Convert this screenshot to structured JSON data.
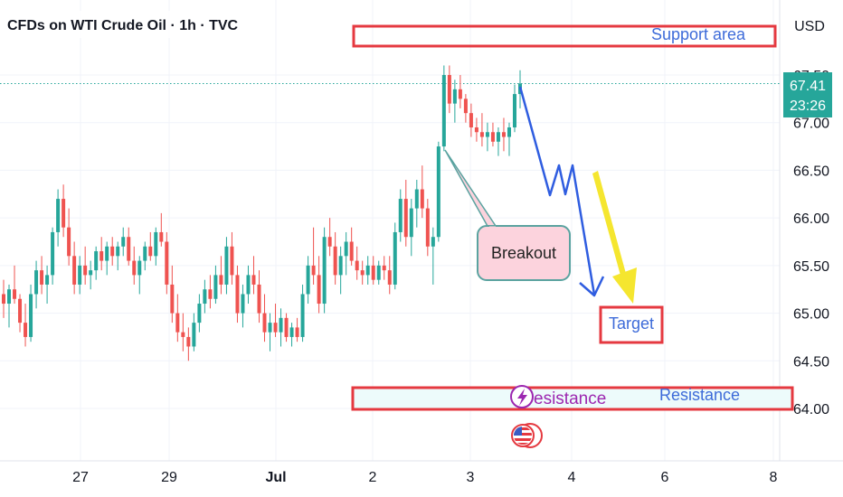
{
  "header": {
    "title": "CFDs on WTI Crude Oil · 1h · TVC",
    "currency": "USD"
  },
  "price_badge": {
    "price": "67.41",
    "countdown": "23:26"
  },
  "annotations": {
    "support_label": "Support area",
    "breakout_label": "Breakout",
    "target_label": "Target",
    "resistance_label": "Resistance",
    "resistance_label_partial": "esistance"
  },
  "colors": {
    "up": "#26a69a",
    "down": "#ef5350",
    "accent_red": "#e53940",
    "label_blue": "#2962ff",
    "arrow_yellow": "#f5e62f"
  },
  "icons": {
    "event": "lightning-icon",
    "flag": "us-flag-icon"
  },
  "chart_data": {
    "type": "candlestick",
    "symbol": "CFDs on WTI Crude Oil",
    "interval": "1h",
    "source": "TVC",
    "y_ticks": [
      "64.00",
      "64.50",
      "65.00",
      "65.50",
      "66.00",
      "66.50",
      "67.00",
      "67.50"
    ],
    "x_ticks": [
      "27",
      "29",
      "Jul",
      "2",
      "3",
      "4",
      "6",
      "8"
    ],
    "ylim": [
      63.5,
      68.0
    ],
    "last_price": 67.41,
    "grid": true,
    "candles": [
      {
        "o": 65.2,
        "h": 65.35,
        "l": 64.95,
        "c": 65.1
      },
      {
        "o": 65.1,
        "h": 65.3,
        "l": 64.85,
        "c": 65.25
      },
      {
        "o": 65.25,
        "h": 65.5,
        "l": 65.1,
        "c": 65.15
      },
      {
        "o": 65.15,
        "h": 65.2,
        "l": 64.8,
        "c": 64.9
      },
      {
        "o": 64.9,
        "h": 65.1,
        "l": 64.65,
        "c": 64.75
      },
      {
        "o": 64.75,
        "h": 65.3,
        "l": 64.7,
        "c": 65.2
      },
      {
        "o": 65.2,
        "h": 65.55,
        "l": 65.05,
        "c": 65.45
      },
      {
        "o": 65.45,
        "h": 65.6,
        "l": 65.2,
        "c": 65.3
      },
      {
        "o": 65.3,
        "h": 65.5,
        "l": 65.1,
        "c": 65.4
      },
      {
        "o": 65.4,
        "h": 65.9,
        "l": 65.3,
        "c": 65.85
      },
      {
        "o": 65.85,
        "h": 66.3,
        "l": 65.7,
        "c": 66.2
      },
      {
        "o": 66.2,
        "h": 66.35,
        "l": 65.8,
        "c": 65.9
      },
      {
        "o": 65.9,
        "h": 66.1,
        "l": 65.5,
        "c": 65.6
      },
      {
        "o": 65.6,
        "h": 65.75,
        "l": 65.2,
        "c": 65.3
      },
      {
        "o": 65.3,
        "h": 65.6,
        "l": 65.2,
        "c": 65.5
      },
      {
        "o": 65.5,
        "h": 65.7,
        "l": 65.3,
        "c": 65.4
      },
      {
        "o": 65.4,
        "h": 65.55,
        "l": 65.25,
        "c": 65.45
      },
      {
        "o": 65.45,
        "h": 65.7,
        "l": 65.35,
        "c": 65.65
      },
      {
        "o": 65.65,
        "h": 65.8,
        "l": 65.45,
        "c": 65.55
      },
      {
        "o": 65.55,
        "h": 65.75,
        "l": 65.4,
        "c": 65.7
      },
      {
        "o": 65.7,
        "h": 65.8,
        "l": 65.5,
        "c": 65.6
      },
      {
        "o": 65.6,
        "h": 65.75,
        "l": 65.45,
        "c": 65.7
      },
      {
        "o": 65.7,
        "h": 65.9,
        "l": 65.6,
        "c": 65.8
      },
      {
        "o": 65.8,
        "h": 65.9,
        "l": 65.5,
        "c": 65.55
      },
      {
        "o": 65.55,
        "h": 65.7,
        "l": 65.3,
        "c": 65.4
      },
      {
        "o": 65.4,
        "h": 65.6,
        "l": 65.2,
        "c": 65.55
      },
      {
        "o": 65.55,
        "h": 65.75,
        "l": 65.45,
        "c": 65.7
      },
      {
        "o": 65.7,
        "h": 65.85,
        "l": 65.55,
        "c": 65.6
      },
      {
        "o": 65.6,
        "h": 65.9,
        "l": 65.5,
        "c": 65.85
      },
      {
        "o": 65.85,
        "h": 66.05,
        "l": 65.7,
        "c": 65.75
      },
      {
        "o": 65.75,
        "h": 65.85,
        "l": 65.2,
        "c": 65.3
      },
      {
        "o": 65.3,
        "h": 65.5,
        "l": 64.9,
        "c": 65.0
      },
      {
        "o": 65.0,
        "h": 65.2,
        "l": 64.7,
        "c": 64.8
      },
      {
        "o": 64.8,
        "h": 65.0,
        "l": 64.6,
        "c": 64.75
      },
      {
        "o": 64.75,
        "h": 64.85,
        "l": 64.5,
        "c": 64.65
      },
      {
        "o": 64.65,
        "h": 65.0,
        "l": 64.6,
        "c": 64.9
      },
      {
        "o": 64.9,
        "h": 65.2,
        "l": 64.8,
        "c": 65.1
      },
      {
        "o": 65.1,
        "h": 65.35,
        "l": 65.0,
        "c": 65.25
      },
      {
        "o": 65.25,
        "h": 65.4,
        "l": 65.05,
        "c": 65.15
      },
      {
        "o": 65.15,
        "h": 65.5,
        "l": 65.1,
        "c": 65.4
      },
      {
        "o": 65.4,
        "h": 65.6,
        "l": 65.2,
        "c": 65.3
      },
      {
        "o": 65.3,
        "h": 65.8,
        "l": 65.2,
        "c": 65.7
      },
      {
        "o": 65.7,
        "h": 65.85,
        "l": 65.3,
        "c": 65.4
      },
      {
        "o": 65.4,
        "h": 65.5,
        "l": 64.9,
        "c": 65.0
      },
      {
        "o": 65.0,
        "h": 65.3,
        "l": 64.85,
        "c": 65.2
      },
      {
        "o": 65.2,
        "h": 65.5,
        "l": 65.1,
        "c": 65.4
      },
      {
        "o": 65.4,
        "h": 65.6,
        "l": 65.2,
        "c": 65.3
      },
      {
        "o": 65.3,
        "h": 65.45,
        "l": 64.9,
        "c": 65.0
      },
      {
        "o": 65.0,
        "h": 65.2,
        "l": 64.7,
        "c": 64.8
      },
      {
        "o": 64.8,
        "h": 65.0,
        "l": 64.6,
        "c": 64.9
      },
      {
        "o": 64.9,
        "h": 65.1,
        "l": 64.75,
        "c": 64.8
      },
      {
        "o": 64.8,
        "h": 65.05,
        "l": 64.65,
        "c": 64.95
      },
      {
        "o": 64.95,
        "h": 65.0,
        "l": 64.7,
        "c": 64.75
      },
      {
        "o": 64.75,
        "h": 64.9,
        "l": 64.65,
        "c": 64.85
      },
      {
        "o": 64.85,
        "h": 64.95,
        "l": 64.7,
        "c": 64.75
      },
      {
        "o": 64.75,
        "h": 65.3,
        "l": 64.7,
        "c": 65.2
      },
      {
        "o": 65.2,
        "h": 65.6,
        "l": 65.1,
        "c": 65.5
      },
      {
        "o": 65.5,
        "h": 65.9,
        "l": 65.3,
        "c": 65.4
      },
      {
        "o": 65.4,
        "h": 65.6,
        "l": 65.0,
        "c": 65.1
      },
      {
        "o": 65.1,
        "h": 65.9,
        "l": 65.0,
        "c": 65.8
      },
      {
        "o": 65.8,
        "h": 66.0,
        "l": 65.6,
        "c": 65.7
      },
      {
        "o": 65.7,
        "h": 65.85,
        "l": 65.3,
        "c": 65.4
      },
      {
        "o": 65.4,
        "h": 65.7,
        "l": 65.2,
        "c": 65.6
      },
      {
        "o": 65.6,
        "h": 65.85,
        "l": 65.4,
        "c": 65.75
      },
      {
        "o": 65.75,
        "h": 65.9,
        "l": 65.5,
        "c": 65.55
      },
      {
        "o": 65.55,
        "h": 65.7,
        "l": 65.35,
        "c": 65.45
      },
      {
        "o": 65.45,
        "h": 65.55,
        "l": 65.3,
        "c": 65.4
      },
      {
        "o": 65.4,
        "h": 65.6,
        "l": 65.3,
        "c": 65.5
      },
      {
        "o": 65.5,
        "h": 65.6,
        "l": 65.3,
        "c": 65.35
      },
      {
        "o": 65.35,
        "h": 65.55,
        "l": 65.3,
        "c": 65.5
      },
      {
        "o": 65.5,
        "h": 65.6,
        "l": 65.35,
        "c": 65.45
      },
      {
        "o": 65.45,
        "h": 65.6,
        "l": 65.2,
        "c": 65.3
      },
      {
        "o": 65.3,
        "h": 65.95,
        "l": 65.25,
        "c": 65.85
      },
      {
        "o": 65.85,
        "h": 66.3,
        "l": 65.75,
        "c": 66.2
      },
      {
        "o": 66.2,
        "h": 66.4,
        "l": 65.7,
        "c": 65.8
      },
      {
        "o": 65.8,
        "h": 66.2,
        "l": 65.6,
        "c": 66.1
      },
      {
        "o": 66.1,
        "h": 66.4,
        "l": 65.9,
        "c": 66.3
      },
      {
        "o": 66.3,
        "h": 66.55,
        "l": 66.0,
        "c": 66.1
      },
      {
        "o": 66.1,
        "h": 66.2,
        "l": 65.6,
        "c": 65.7
      },
      {
        "o": 65.7,
        "h": 65.9,
        "l": 65.3,
        "c": 65.8
      },
      {
        "o": 65.8,
        "h": 66.8,
        "l": 65.75,
        "c": 66.75
      },
      {
        "o": 66.75,
        "h": 67.6,
        "l": 66.7,
        "c": 67.5
      },
      {
        "o": 67.5,
        "h": 67.6,
        "l": 67.1,
        "c": 67.2
      },
      {
        "o": 67.2,
        "h": 67.45,
        "l": 67.0,
        "c": 67.35
      },
      {
        "o": 67.35,
        "h": 67.5,
        "l": 67.15,
        "c": 67.25
      },
      {
        "o": 67.25,
        "h": 67.3,
        "l": 67.0,
        "c": 67.1
      },
      {
        "o": 67.1,
        "h": 67.2,
        "l": 66.85,
        "c": 66.95
      },
      {
        "o": 66.95,
        "h": 67.05,
        "l": 66.8,
        "c": 66.9
      },
      {
        "o": 66.9,
        "h": 67.1,
        "l": 66.75,
        "c": 66.85
      },
      {
        "o": 66.85,
        "h": 67.0,
        "l": 66.7,
        "c": 66.9
      },
      {
        "o": 66.9,
        "h": 67.0,
        "l": 66.75,
        "c": 66.8
      },
      {
        "o": 66.8,
        "h": 66.95,
        "l": 66.65,
        "c": 66.9
      },
      {
        "o": 66.9,
        "h": 67.05,
        "l": 66.7,
        "c": 66.85
      },
      {
        "o": 66.85,
        "h": 67.0,
        "l": 66.65,
        "c": 66.95
      },
      {
        "o": 66.95,
        "h": 67.4,
        "l": 66.9,
        "c": 67.3
      },
      {
        "o": 67.3,
        "h": 67.55,
        "l": 67.15,
        "c": 67.41
      }
    ]
  }
}
